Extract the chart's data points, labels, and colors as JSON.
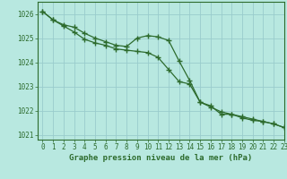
{
  "title": "Graphe pression niveau de la mer (hPa)",
  "background_color": "#b8e8e0",
  "grid_color": "#99cccc",
  "line_color": "#2d6b2d",
  "xlim": [
    -0.5,
    23
  ],
  "ylim": [
    1020.8,
    1026.5
  ],
  "yticks": [
    1021,
    1022,
    1023,
    1024,
    1025,
    1026
  ],
  "xticks": [
    0,
    1,
    2,
    3,
    4,
    5,
    6,
    7,
    8,
    9,
    10,
    11,
    12,
    13,
    14,
    15,
    16,
    17,
    18,
    19,
    20,
    21,
    22,
    23
  ],
  "series1": [
    1026.1,
    1025.75,
    1025.55,
    1025.45,
    1025.2,
    1025.0,
    1024.85,
    1024.7,
    1024.65,
    1025.0,
    1025.1,
    1025.05,
    1024.9,
    1024.05,
    1023.25,
    1022.35,
    1022.15,
    1021.95,
    1021.85,
    1021.7,
    1021.6,
    1021.55,
    1021.45,
    1021.3
  ],
  "series2": [
    1026.1,
    1025.75,
    1025.5,
    1025.25,
    1024.95,
    1024.8,
    1024.7,
    1024.55,
    1024.5,
    1024.45,
    1024.4,
    1024.2,
    1023.7,
    1023.2,
    1023.1,
    1022.35,
    1022.2,
    1021.85,
    1021.85,
    1021.75,
    1021.65,
    1021.55,
    1021.45,
    1021.3
  ],
  "marker": "+",
  "markersize": 4,
  "markeredgewidth": 1.0,
  "linewidth": 0.9,
  "xlabel_fontsize": 6.5,
  "tick_fontsize": 5.5
}
